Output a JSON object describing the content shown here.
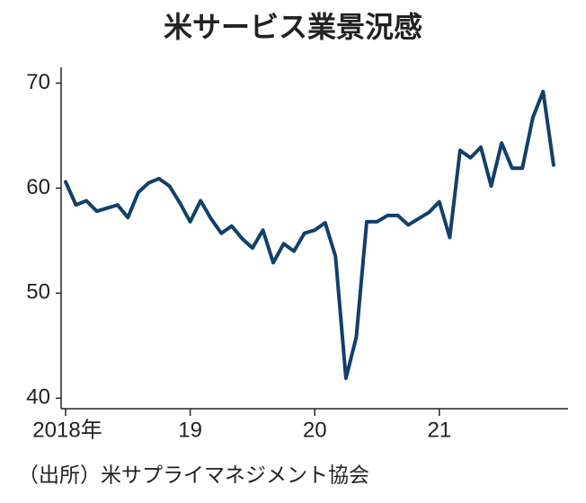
{
  "chart_data": {
    "type": "line",
    "title": "米サービス業景況感",
    "categories": [
      "2018年",
      null,
      null,
      null,
      null,
      null,
      null,
      null,
      null,
      null,
      null,
      null,
      "19",
      null,
      null,
      null,
      null,
      null,
      null,
      null,
      null,
      null,
      null,
      null,
      "20",
      null,
      null,
      null,
      null,
      null,
      null,
      null,
      null,
      null,
      null,
      null,
      "21",
      null,
      null,
      null,
      null,
      null,
      null,
      null,
      null,
      null,
      null,
      null
    ],
    "series": [
      {
        "color": "#123f6b",
        "values": [
          60.6,
          58.4,
          58.8,
          57.8,
          58.1,
          58.4,
          57.2,
          59.6,
          60.5,
          60.9,
          60.2,
          58.6,
          56.8,
          58.8,
          57.1,
          55.7,
          56.4,
          55.2,
          54.3,
          56.0,
          52.9,
          54.7,
          54.0,
          55.7,
          56.0,
          56.7,
          53.5,
          41.9,
          45.8,
          56.8,
          56.8,
          57.4,
          57.4,
          56.5,
          57.1,
          57.7,
          58.7,
          55.3,
          63.6,
          62.9,
          63.9,
          60.2,
          64.3,
          61.9,
          61.9,
          66.7,
          69.2,
          62.2
        ]
      }
    ],
    "ylim": [
      39,
      71.5
    ],
    "yticks": [
      40,
      50,
      60,
      70
    ],
    "source": "（出所）米サプライマネジメント協会"
  }
}
